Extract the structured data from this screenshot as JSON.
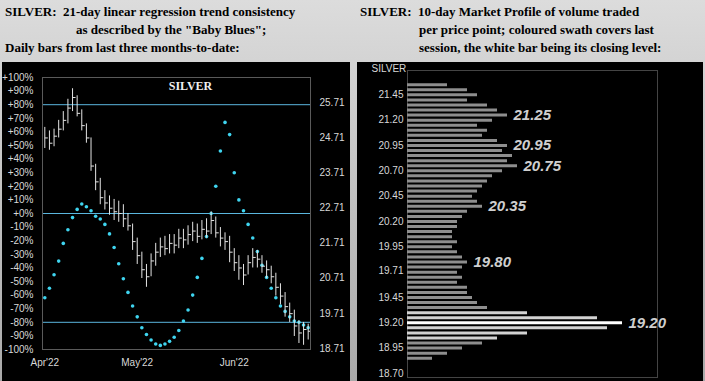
{
  "chart_data": [
    {
      "type": "ohlc",
      "title": [
        "SILVER:  21-day linear regression trend consistency",
        "as described by the \"Baby Blues\";",
        "Daily bars from last three months-to-date:"
      ],
      "subtitle": "SILVER",
      "categories": [
        "Apr'22",
        null,
        null,
        null,
        null,
        null,
        null,
        null,
        null,
        null,
        null,
        null,
        null,
        null,
        null,
        null,
        null,
        null,
        null,
        null,
        "May'22",
        null,
        null,
        null,
        null,
        null,
        null,
        null,
        null,
        null,
        null,
        null,
        null,
        null,
        null,
        null,
        null,
        null,
        null,
        null,
        null,
        "Jun'22",
        null,
        null,
        null,
        null,
        null,
        null,
        null,
        null,
        null,
        null,
        null,
        null,
        null,
        null,
        null,
        null
      ],
      "high": [
        25.0,
        24.9,
        24.95,
        25.2,
        25.45,
        25.8,
        26.1,
        25.9,
        25.5,
        25.1,
        24.7,
        23.95,
        23.55,
        23.2,
        23.05,
        22.95,
        22.9,
        22.8,
        22.55,
        22.25,
        21.85,
        21.45,
        21.1,
        21.4,
        21.7,
        21.85,
        21.9,
        21.95,
        21.95,
        22.1,
        22.1,
        22.2,
        22.3,
        22.25,
        22.35,
        22.4,
        22.6,
        22.45,
        22.15,
        22.0,
        21.9,
        21.55,
        21.35,
        21.1,
        21.35,
        21.55,
        21.5,
        21.35,
        21.2,
        21.05,
        20.85,
        20.55,
        20.3,
        20.0,
        19.8,
        19.5,
        19.45,
        19.4
      ],
      "low": [
        24.4,
        24.35,
        24.45,
        24.7,
        24.9,
        25.1,
        25.45,
        25.3,
        24.9,
        24.55,
        23.75,
        23.2,
        22.8,
        22.65,
        22.5,
        22.35,
        22.3,
        22.15,
        22.05,
        21.5,
        21.1,
        20.7,
        20.45,
        20.75,
        21.05,
        21.3,
        21.35,
        21.4,
        21.4,
        21.55,
        21.55,
        21.65,
        21.75,
        21.7,
        21.8,
        21.85,
        21.95,
        21.85,
        21.6,
        21.5,
        21.15,
        20.9,
        20.65,
        20.5,
        20.8,
        21.0,
        21.0,
        20.85,
        20.7,
        20.55,
        20.2,
        19.95,
        19.6,
        19.45,
        19.05,
        18.85,
        18.8,
        18.95
      ],
      "close": [
        24.7,
        24.55,
        24.75,
        24.95,
        25.2,
        25.55,
        25.85,
        25.4,
        25.05,
        24.7,
        23.9,
        23.45,
        23.0,
        22.85,
        22.7,
        22.6,
        22.55,
        22.4,
        22.2,
        21.75,
        21.35,
        20.95,
        20.75,
        21.2,
        21.45,
        21.6,
        21.55,
        21.7,
        21.65,
        21.85,
        21.8,
        21.95,
        22.05,
        21.9,
        22.1,
        22.05,
        22.35,
        22.0,
        21.85,
        21.75,
        21.45,
        21.15,
        21.0,
        20.8,
        21.15,
        21.3,
        21.25,
        21.05,
        20.95,
        20.75,
        20.45,
        20.2,
        19.9,
        19.7,
        19.35,
        19.15,
        19.25,
        19.2
      ],
      "color": "#e4e4e4",
      "ylim": [
        18.68,
        26.42
      ],
      "yticks": [
        18.71,
        19.71,
        20.71,
        21.71,
        22.71,
        23.71,
        24.71,
        25.71
      ],
      "y2lim": [
        -100,
        100
      ],
      "y2ticks": [
        {
          "value": 100,
          "label": "+100%"
        },
        {
          "value": 90,
          "label": "+90%"
        },
        {
          "value": 80,
          "label": "+80%"
        },
        {
          "value": 70,
          "label": "+70%"
        },
        {
          "value": 60,
          "label": "+60%"
        },
        {
          "value": 50,
          "label": "+50%"
        },
        {
          "value": 40,
          "label": "+40%"
        },
        {
          "value": 30,
          "label": "+30%"
        },
        {
          "value": 20,
          "label": "+20%"
        },
        {
          "value": 10,
          "label": "+10%"
        },
        {
          "value": 0,
          "label": "+0%"
        },
        {
          "value": -10,
          "label": "-10%"
        },
        {
          "value": -20,
          "label": "-20%"
        },
        {
          "value": -30,
          "label": "-30%"
        },
        {
          "value": -40,
          "label": "-40%"
        },
        {
          "value": -50,
          "label": "-50%"
        },
        {
          "value": -60,
          "label": "-60%"
        },
        {
          "value": -70,
          "label": "-70%"
        },
        {
          "value": -80,
          "label": "-80%"
        },
        {
          "value": -90,
          "label": "-90%"
        },
        {
          "value": -100,
          "label": "-100%"
        }
      ],
      "reference_lines": [
        80,
        0,
        -80
      ],
      "series": [
        {
          "name": "Baby Blues",
          "type": "scatter",
          "axis": "y2",
          "color": "#3fd5f0",
          "values": [
            -62,
            -55,
            -45,
            -35,
            -22,
            -12,
            -3,
            3,
            7,
            5,
            2,
            -2,
            -4,
            -8,
            -15,
            -25,
            -37,
            -48,
            -58,
            -68,
            -76,
            -84,
            -89,
            -93,
            -96,
            -97,
            -96,
            -94,
            -91,
            -86,
            -79,
            -71,
            -60,
            -47,
            -33,
            -17,
            0,
            20,
            46,
            67,
            58,
            30,
            10,
            2,
            -8,
            -18,
            -28,
            -38,
            -47,
            -55,
            -62,
            -68,
            -72,
            -76,
            -79,
            -80,
            -82,
            -84
          ]
        }
      ]
    },
    {
      "type": "bar",
      "orientation": "horizontal",
      "title": [
        "SILVER:  10-day Market Profile of volume traded",
        "per price point; coloured swath covers last",
        "session, the white bar being its closing level:"
      ],
      "y_label": "SILVER",
      "y": [
        21.55,
        21.5,
        21.45,
        21.4,
        21.35,
        21.3,
        21.25,
        21.2,
        21.15,
        21.1,
        21.05,
        21,
        20.95,
        20.9,
        20.85,
        20.8,
        20.75,
        20.7,
        20.65,
        20.6,
        20.55,
        20.5,
        20.45,
        20.4,
        20.35,
        20.3,
        20.25,
        20.2,
        20.15,
        20.1,
        20.05,
        20,
        19.95,
        19.9,
        19.85,
        19.8,
        19.75,
        19.7,
        19.65,
        19.6,
        19.55,
        19.5,
        19.45,
        19.4,
        19.35,
        19.3,
        19.25,
        19.2,
        19.15,
        19.1,
        19.05,
        19,
        18.95,
        18.9,
        18.85
      ],
      "values": [
        40,
        60,
        70,
        60,
        80,
        90,
        100,
        85,
        70,
        80,
        75,
        90,
        100,
        95,
        105,
        100,
        110,
        95,
        85,
        80,
        75,
        70,
        65,
        70,
        75,
        60,
        55,
        50,
        50,
        45,
        45,
        50,
        45,
        50,
        55,
        60,
        55,
        50,
        55,
        50,
        60,
        60,
        65,
        70,
        80,
        120,
        190,
        215,
        200,
        120,
        90,
        75,
        55,
        40,
        25
      ],
      "color": "#8e8e8e",
      "session_range": [
        19.05,
        19.3
      ],
      "close": 19.2,
      "xlim": [
        0,
        250
      ],
      "ylim": [
        18.66,
        21.69
      ],
      "yticks": [
        21.45,
        {
          "value": 21.2,
          "label": "21.20"
        },
        20.95,
        {
          "value": 20.7,
          "label": "20.70"
        },
        20.45,
        {
          "value": 20.2,
          "label": "20.20"
        },
        19.95,
        19.71,
        19.45,
        {
          "value": 19.2,
          "label": "19.20"
        },
        18.95,
        {
          "value": 18.7,
          "label": "18.70"
        }
      ],
      "tick_labels": "y",
      "annotations": [
        21.25,
        20.95,
        20.75,
        20.35,
        {
          "value": 19.8,
          "label": "19.80"
        },
        {
          "value": 19.2,
          "label": "19.20"
        }
      ]
    }
  ]
}
